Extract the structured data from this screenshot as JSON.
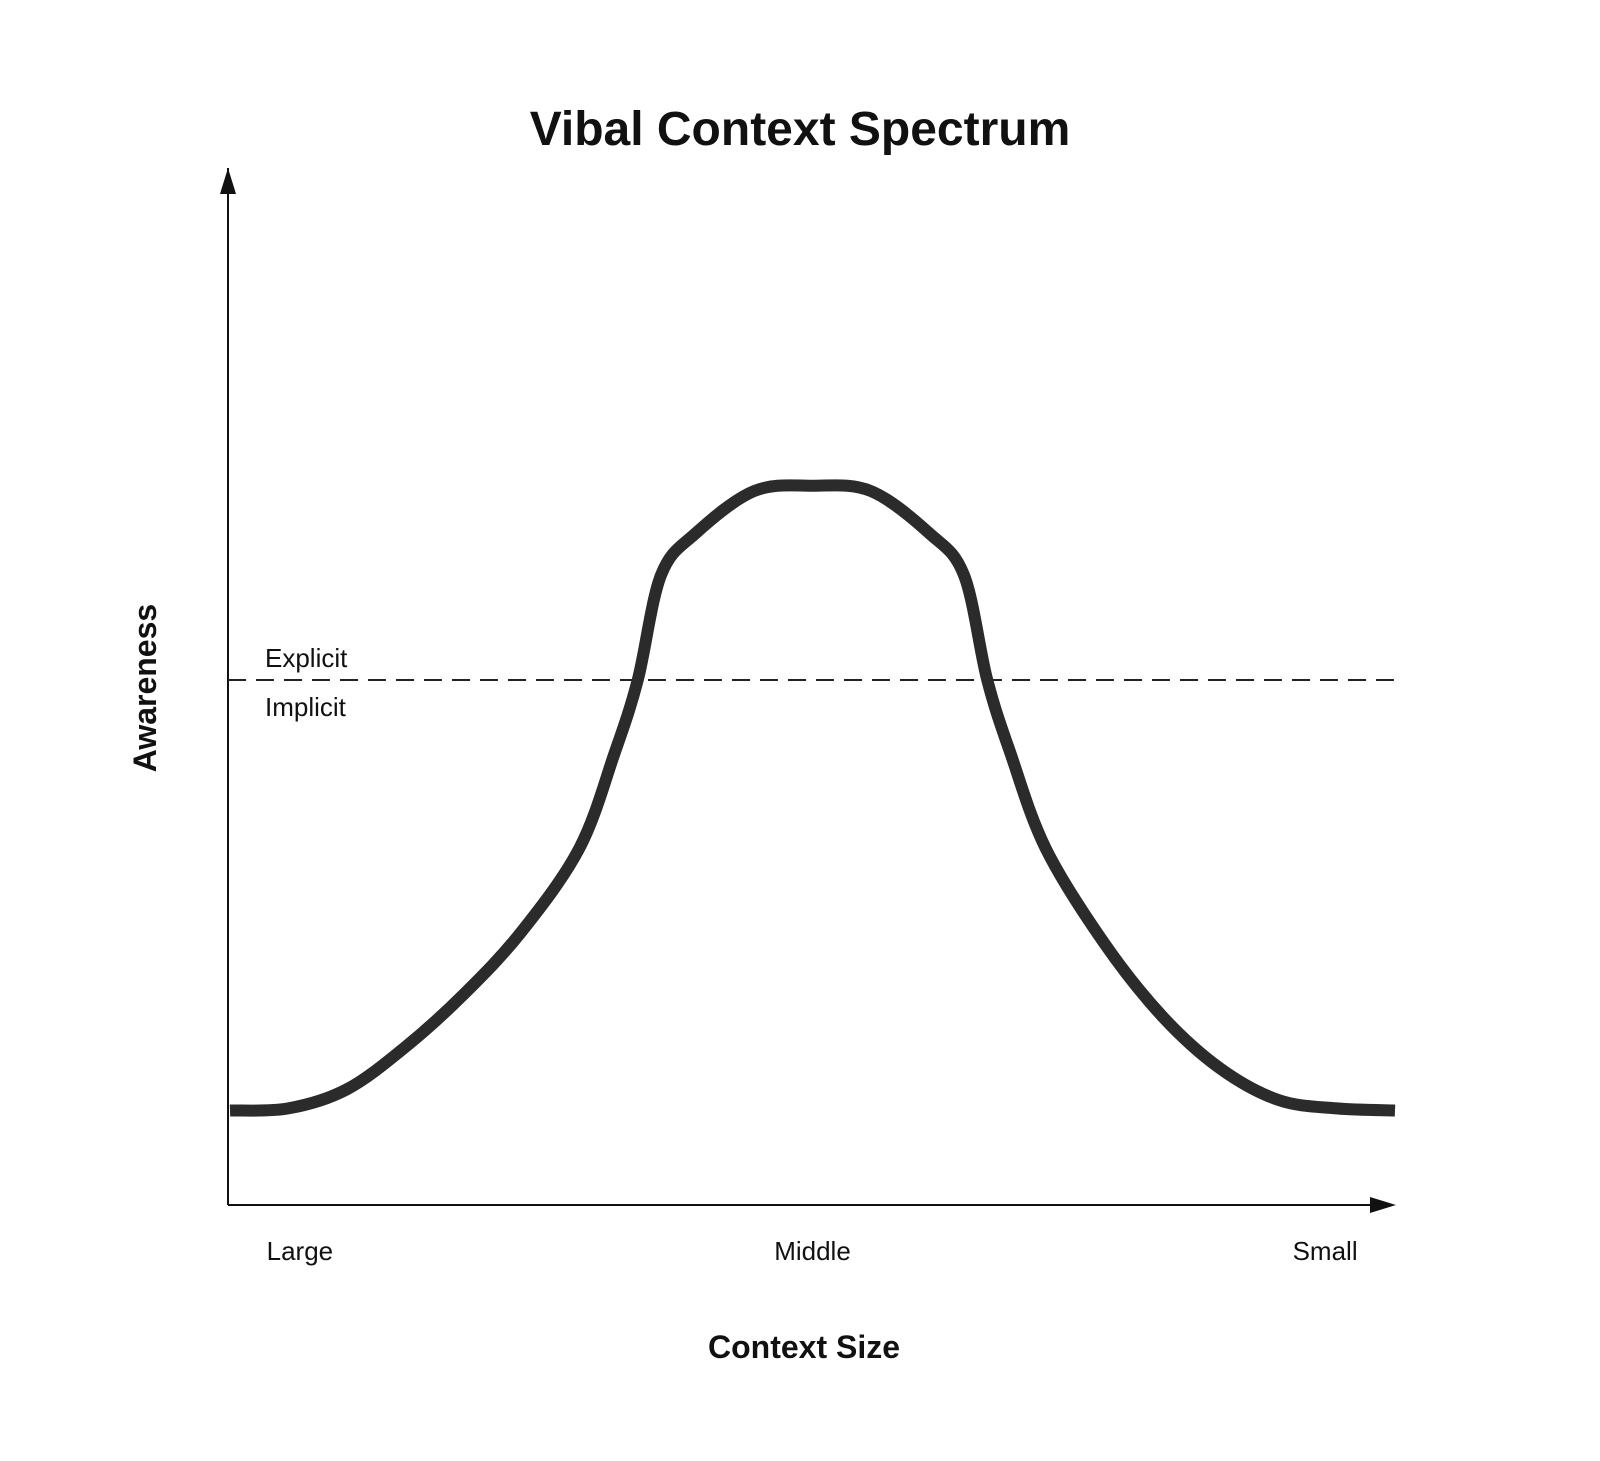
{
  "chart_data": {
    "type": "line",
    "title": "Vibal Context Spectrum",
    "xlabel": "Context Size",
    "ylabel": "Awareness",
    "x_tick_labels": [
      "Large",
      "Middle",
      "Small"
    ],
    "x_tick_values": [
      0.06,
      0.5,
      0.94
    ],
    "xlim": [
      0,
      1
    ],
    "ylim": [
      0,
      1
    ],
    "grid": false,
    "legend": "none",
    "threshold": {
      "value": 0.5,
      "label_above": "Explicit",
      "label_below": "Implicit"
    },
    "series": [
      {
        "color": "#2b2b2b",
        "points": [
          [
            0.0,
            0.09
          ],
          [
            0.05,
            0.092
          ],
          [
            0.1,
            0.11
          ],
          [
            0.15,
            0.15
          ],
          [
            0.2,
            0.2
          ],
          [
            0.25,
            0.26
          ],
          [
            0.3,
            0.34
          ],
          [
            0.33,
            0.43
          ],
          [
            0.35,
            0.5
          ],
          [
            0.37,
            0.6
          ],
          [
            0.4,
            0.64
          ],
          [
            0.45,
            0.68
          ],
          [
            0.5,
            0.685
          ],
          [
            0.55,
            0.68
          ],
          [
            0.6,
            0.64
          ],
          [
            0.63,
            0.6
          ],
          [
            0.65,
            0.5
          ],
          [
            0.67,
            0.43
          ],
          [
            0.7,
            0.34
          ],
          [
            0.75,
            0.25
          ],
          [
            0.8,
            0.18
          ],
          [
            0.85,
            0.13
          ],
          [
            0.9,
            0.1
          ],
          [
            0.95,
            0.092
          ],
          [
            1.0,
            0.09
          ]
        ]
      }
    ]
  }
}
